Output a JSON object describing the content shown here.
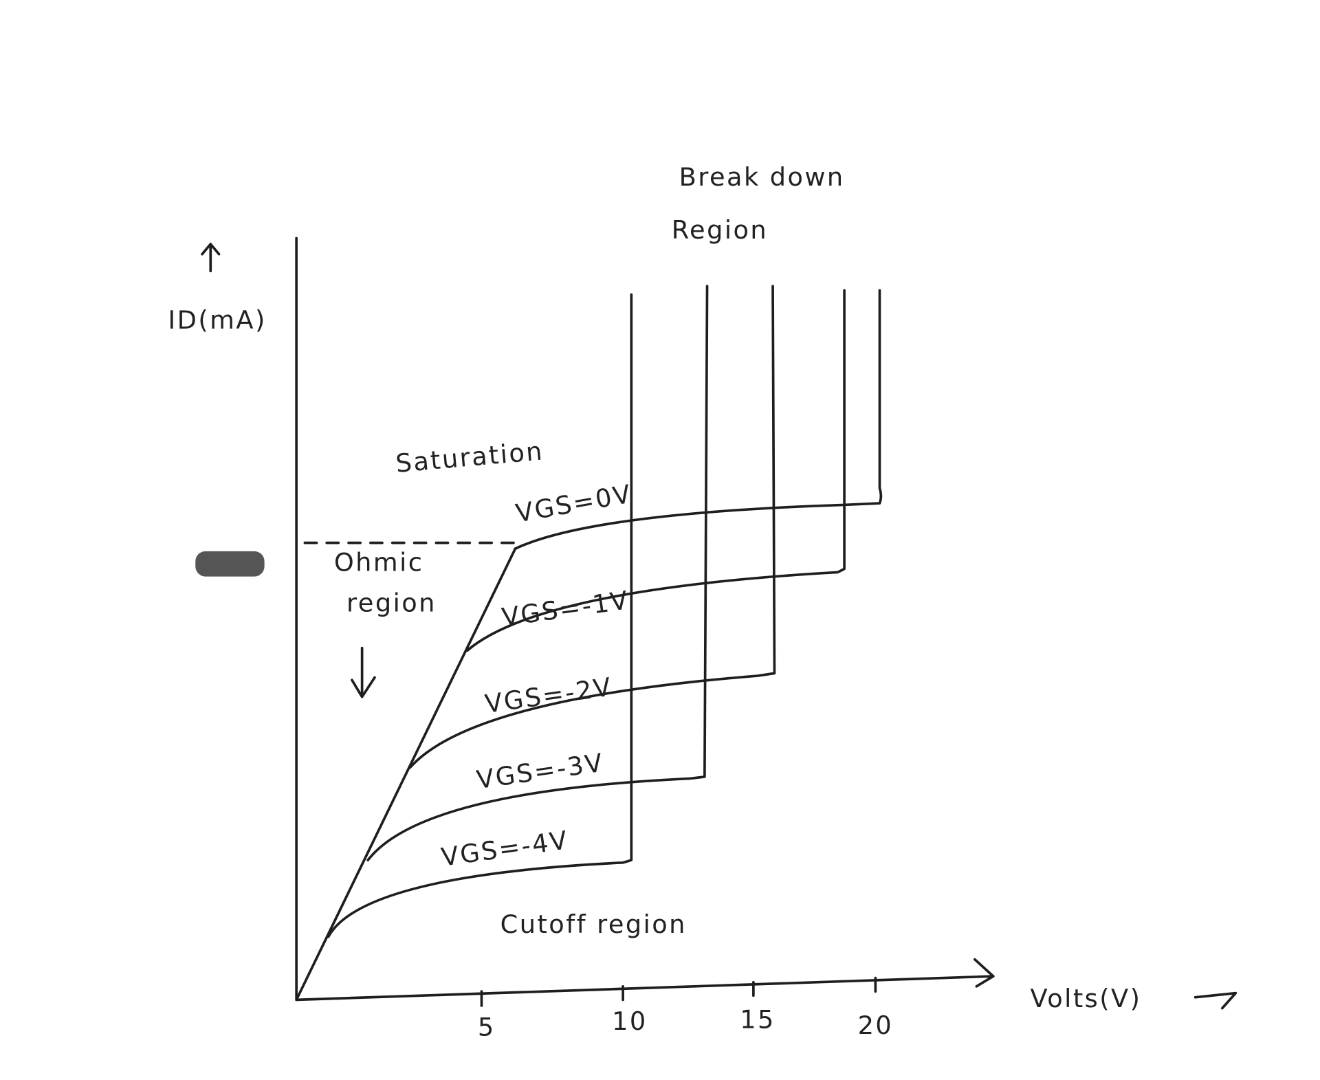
{
  "axes": {
    "y_label": "ID(mA)",
    "x_label": "Volts(V)",
    "x_ticks": [
      "5",
      "10",
      "15",
      "20"
    ]
  },
  "regions": {
    "breakdown": [
      "Break down",
      "Region"
    ],
    "saturation": "Saturation",
    "ohmic": [
      "Ohmic",
      "region"
    ],
    "cutoff": "Cutoff region"
  },
  "curves": [
    "VGS=0V",
    "VGS=-1V",
    "VGS=-2V",
    "VGS=-3V",
    "VGS=-4V"
  ]
}
